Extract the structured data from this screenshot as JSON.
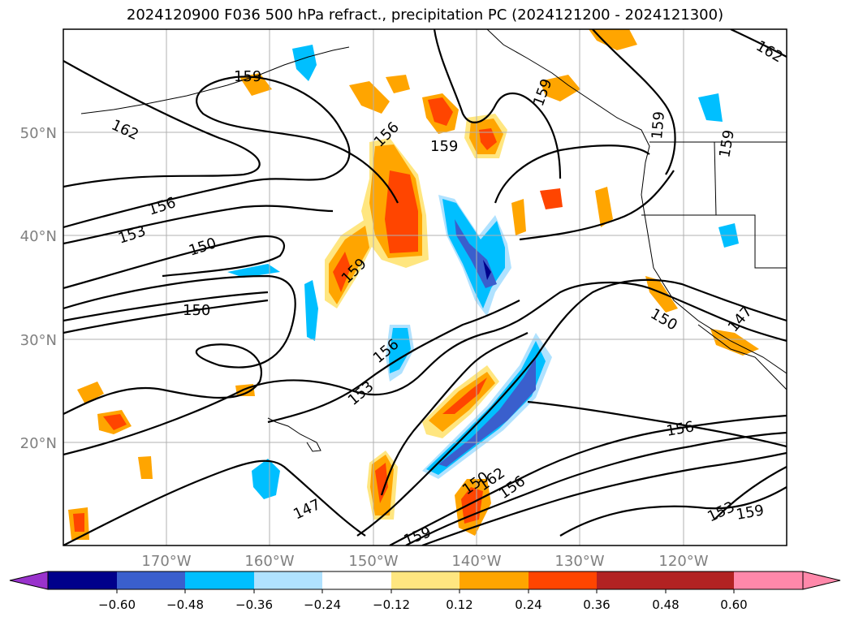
{
  "title": "2024120900 F036 500 hPa refract., precipitation PC (2024121200 - 2024121300)",
  "latitude_labels": [
    "50°N",
    "40°N",
    "30°N",
    "20°N"
  ],
  "longitude_labels": [
    "170°W",
    "160°W",
    "150°W",
    "140°W",
    "130°W",
    "120°W"
  ],
  "contour_labels": [
    "162",
    "156",
    "153",
    "150",
    "150",
    "159",
    "156",
    "156",
    "153",
    "159",
    "159",
    "159",
    "159",
    "159",
    "150",
    "150",
    "147",
    "147",
    "156",
    "162",
    "156",
    "153",
    "159",
    "159",
    "162"
  ],
  "colorbar": {
    "tick_labels": [
      "−0.60",
      "−0.48",
      "−0.36",
      "−0.24",
      "−0.12",
      "0.12",
      "0.24",
      "0.36",
      "0.48",
      "0.60"
    ],
    "colors": [
      "#9932cc",
      "#00008b",
      "#3a5fcd",
      "#00bfff",
      "#b0e2ff",
      "#ffffff",
      "#ffe680",
      "#ffa500",
      "#ff4500",
      "#b22222",
      "#ff88aa"
    ]
  }
}
